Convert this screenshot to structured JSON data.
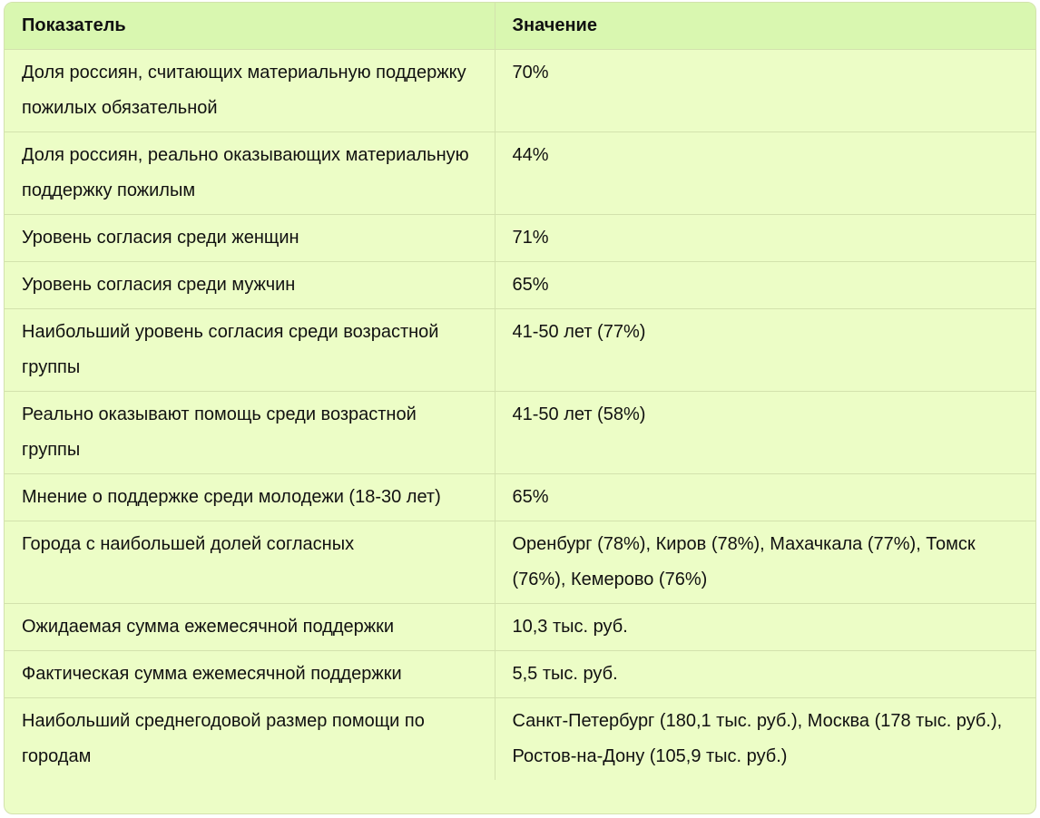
{
  "table": {
    "headers": [
      "Показатель",
      "Значение"
    ],
    "rows": [
      {
        "indicator": "Доля россиян, считающих материальную поддержку пожилых обязательной",
        "value": "70%"
      },
      {
        "indicator": "Доля россиян, реально оказывающих материальную поддержку пожилым",
        "value": "44%"
      },
      {
        "indicator": "Уровень согласия среди женщин",
        "value": "71%"
      },
      {
        "indicator": "Уровень согласия среди мужчин",
        "value": "65%"
      },
      {
        "indicator": "Наибольший уровень согласия среди возрастной группы",
        "value": "41-50 лет (77%)"
      },
      {
        "indicator": "Реально оказывают помощь среди возрастной группы",
        "value": "41-50 лет (58%)"
      },
      {
        "indicator": "Мнение о поддержке среди молодежи (18-30 лет)",
        "value": "65%"
      },
      {
        "indicator": "Города с наибольшей долей согласных",
        "value": "Оренбург (78%), Киров (78%), Махачкала (77%), Томск (76%), Кемерово (76%)"
      },
      {
        "indicator": "Ожидаемая сумма ежемесячной поддержки",
        "value": "10,3 тыс. руб."
      },
      {
        "indicator": "Фактическая сумма ежемесячной поддержки",
        "value": "5,5 тыс. руб."
      },
      {
        "indicator": "Наибольший среднегодовой размер помощи по городам",
        "value": "Санкт-Петербург (180,1 тыс. руб.), Москва (178 тыс. руб.), Ростов-на-Дону (105,9 тыс. руб.)"
      }
    ]
  }
}
